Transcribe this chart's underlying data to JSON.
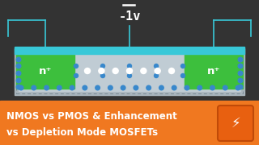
{
  "bg_color": "#333333",
  "banner_color": "#f07820",
  "banner_text_line1": "NMOS vs PMOS & Enhancement",
  "banner_text_line2": "vs Depletion Mode MOSFETs",
  "banner_text_color": "#ffffff",
  "substrate_outer_color": "#a8b4bc",
  "substrate_inner_color": "#c0ccd4",
  "gate_oxide_color": "#38c8d8",
  "n_region_color": "#3dbf3d",
  "n_region_text": "n⁺",
  "n_region_text_color": "#ffffff",
  "channel_hole_color": "#ffffff",
  "minus_dot_color": "#3888cc",
  "wire_color": "#38c8d8",
  "voltage_text": "-1v",
  "voltage_text_color": "#ffffff",
  "minus_bar_color": "#ffffff",
  "icon_bg": "#e86010",
  "icon_border": "#c04a08",
  "dashed_color": "#7a8a94",
  "title_fontsize": 8.5,
  "voltage_fontsize": 11,
  "n_fontsize": 7.5,
  "lw": 1.2
}
